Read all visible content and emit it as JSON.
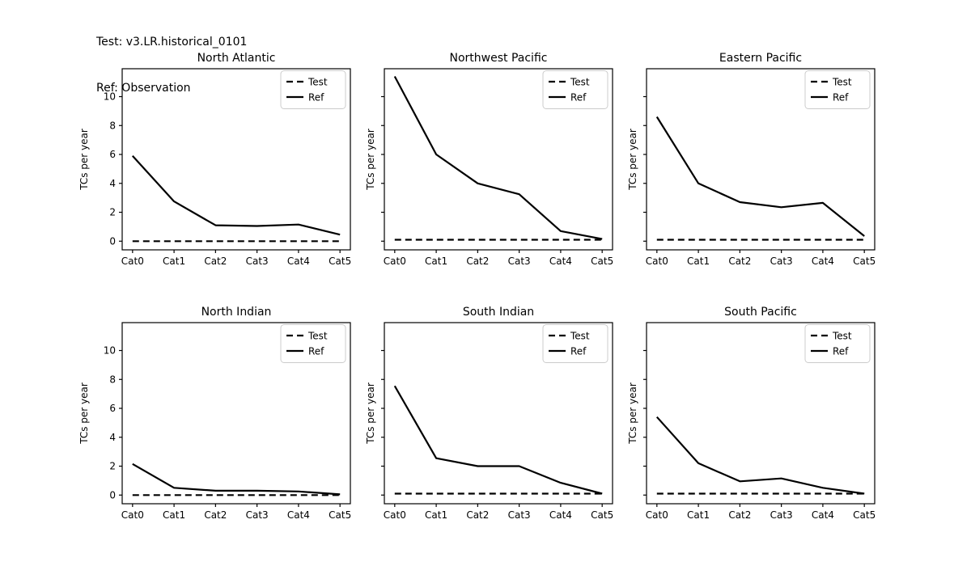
{
  "header": {
    "line1": "Test: v3.LR.historical_0101",
    "line2": "Ref: Observation"
  },
  "colors": {
    "foreground": "#000000",
    "background": "#ffffff",
    "legend_border": "#cccccc"
  },
  "chart_data": [
    {
      "type": "line",
      "title": "North Atlantic",
      "ylabel": "TCs per year",
      "categories": [
        "Cat0",
        "Cat1",
        "Cat2",
        "Cat3",
        "Cat4",
        "Cat5"
      ],
      "yticks": [
        0,
        2,
        4,
        6,
        8,
        10
      ],
      "show_ytick_labels": true,
      "ylim": [
        -0.6,
        11.93
      ],
      "grid": false,
      "legend_position": "upper right",
      "series": [
        {
          "name": "Test",
          "style": "dashed",
          "values": [
            0.0,
            0.0,
            0.0,
            0.0,
            0.0,
            0.0
          ]
        },
        {
          "name": "Ref",
          "style": "solid",
          "values": [
            5.9,
            2.75,
            1.1,
            1.05,
            1.15,
            0.45
          ]
        }
      ]
    },
    {
      "type": "line",
      "title": "Northwest Pacific",
      "ylabel": "TCs per year",
      "categories": [
        "Cat0",
        "Cat1",
        "Cat2",
        "Cat3",
        "Cat4",
        "Cat5"
      ],
      "yticks": [
        0,
        2,
        4,
        6,
        8,
        10
      ],
      "show_ytick_labels": false,
      "ylim": [
        -0.6,
        11.93
      ],
      "grid": false,
      "legend_position": "upper right",
      "series": [
        {
          "name": "Test",
          "style": "dashed",
          "values": [
            0.1,
            0.1,
            0.1,
            0.1,
            0.1,
            0.1
          ]
        },
        {
          "name": "Ref",
          "style": "solid",
          "values": [
            11.4,
            6.0,
            4.0,
            3.25,
            0.7,
            0.15
          ]
        }
      ]
    },
    {
      "type": "line",
      "title": "Eastern Pacific",
      "ylabel": "TCs per year",
      "categories": [
        "Cat0",
        "Cat1",
        "Cat2",
        "Cat3",
        "Cat4",
        "Cat5"
      ],
      "yticks": [
        0,
        2,
        4,
        6,
        8,
        10
      ],
      "show_ytick_labels": false,
      "ylim": [
        -0.6,
        11.93
      ],
      "grid": false,
      "legend_position": "upper right",
      "series": [
        {
          "name": "Test",
          "style": "dashed",
          "values": [
            0.1,
            0.1,
            0.1,
            0.1,
            0.1,
            0.1
          ]
        },
        {
          "name": "Ref",
          "style": "solid",
          "values": [
            8.6,
            4.0,
            2.7,
            2.35,
            2.65,
            0.35
          ]
        }
      ]
    },
    {
      "type": "line",
      "title": "North Indian",
      "ylabel": "TCs per year",
      "categories": [
        "Cat0",
        "Cat1",
        "Cat2",
        "Cat3",
        "Cat4",
        "Cat5"
      ],
      "yticks": [
        0,
        2,
        4,
        6,
        8,
        10
      ],
      "show_ytick_labels": true,
      "ylim": [
        -0.6,
        11.93
      ],
      "grid": false,
      "legend_position": "upper right",
      "series": [
        {
          "name": "Test",
          "style": "dashed",
          "values": [
            0.0,
            0.0,
            0.0,
            0.0,
            0.0,
            0.0
          ]
        },
        {
          "name": "Ref",
          "style": "solid",
          "values": [
            2.15,
            0.5,
            0.3,
            0.3,
            0.25,
            0.05
          ]
        }
      ]
    },
    {
      "type": "line",
      "title": "South Indian",
      "ylabel": "TCs per year",
      "categories": [
        "Cat0",
        "Cat1",
        "Cat2",
        "Cat3",
        "Cat4",
        "Cat5"
      ],
      "yticks": [
        0,
        2,
        4,
        6,
        8,
        10
      ],
      "show_ytick_labels": false,
      "ylim": [
        -0.6,
        11.93
      ],
      "grid": false,
      "legend_position": "upper right",
      "series": [
        {
          "name": "Test",
          "style": "dashed",
          "values": [
            0.1,
            0.1,
            0.1,
            0.1,
            0.1,
            0.1
          ]
        },
        {
          "name": "Ref",
          "style": "solid",
          "values": [
            7.55,
            2.55,
            2.0,
            2.0,
            0.85,
            0.1
          ]
        }
      ]
    },
    {
      "type": "line",
      "title": "South Pacific",
      "ylabel": "TCs per year",
      "categories": [
        "Cat0",
        "Cat1",
        "Cat2",
        "Cat3",
        "Cat4",
        "Cat5"
      ],
      "yticks": [
        0,
        2,
        4,
        6,
        8,
        10
      ],
      "show_ytick_labels": false,
      "ylim": [
        -0.6,
        11.93
      ],
      "grid": false,
      "legend_position": "upper right",
      "series": [
        {
          "name": "Test",
          "style": "dashed",
          "values": [
            0.1,
            0.1,
            0.1,
            0.1,
            0.1,
            0.1
          ]
        },
        {
          "name": "Ref",
          "style": "solid",
          "values": [
            5.4,
            2.2,
            0.95,
            1.15,
            0.5,
            0.1
          ]
        }
      ]
    }
  ]
}
